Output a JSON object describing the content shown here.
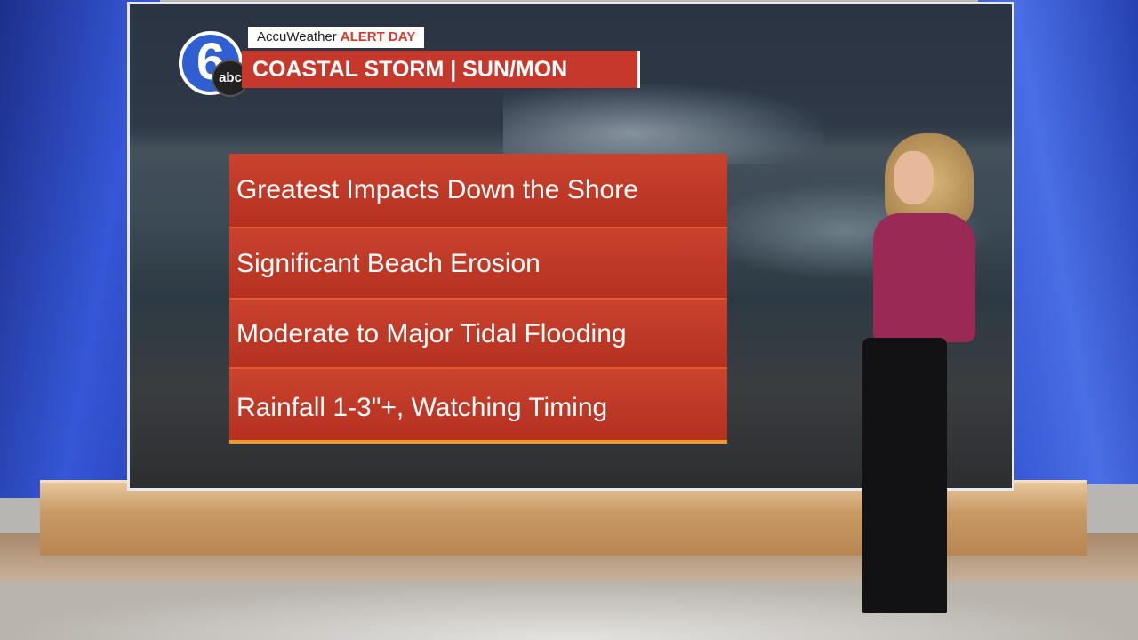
{
  "graphic": {
    "station_logo": {
      "number": "6",
      "network": "abc"
    },
    "tag": {
      "brand": "AccuWeather",
      "alert": "ALERT DAY"
    },
    "title": "COASTAL STORM | SUN/MON",
    "items": [
      "Greatest Impacts Down the Shore",
      "Significant Beach Erosion",
      "Moderate to Major Tidal Flooding",
      "Rainfall 1-3\"+, Watching Timing"
    ],
    "colors": {
      "box_red": "#c7382c",
      "alert_red": "#d23a2e",
      "wall_blue": "#3556d6"
    }
  }
}
